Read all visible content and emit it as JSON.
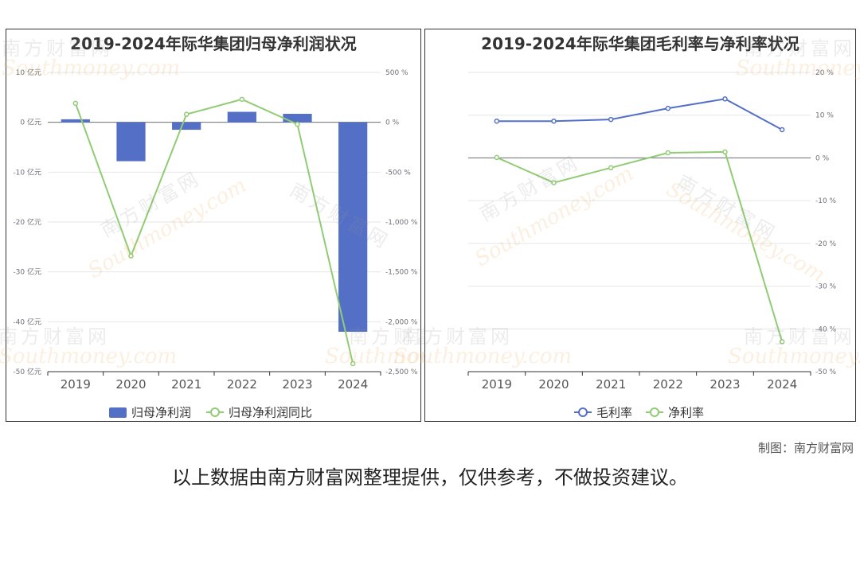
{
  "credit": "制图：南方财富网",
  "disclaimer": "以上数据由南方财富网整理提供，仅供参考，不做投资建议。",
  "watermark": {
    "cn": "南方财富网",
    "en": "Southmoney.com"
  },
  "colors": {
    "blue": "#5470c6",
    "green": "#91cc75"
  },
  "chart_data": [
    {
      "type": "bar",
      "title": "2019-2024年际华集团归母净利润状况",
      "categories": [
        "2019",
        "2020",
        "2021",
        "2022",
        "2023",
        "2024"
      ],
      "y_left": {
        "ticks": [
          10,
          0,
          -10,
          -20,
          -30,
          -40,
          -50
        ],
        "labels": [
          "10 亿元",
          "0 亿元",
          "-10 亿元",
          "-20 亿元",
          "-30 亿元",
          "-40 亿元",
          "-50 亿元"
        ],
        "range": [
          -50,
          10
        ]
      },
      "y_right": {
        "ticks": [
          500,
          0,
          -500,
          -1000,
          -1500,
          -2000,
          -2500
        ],
        "labels": [
          "500 %",
          "0 %",
          "-500 %",
          "-1,000 %",
          "-1,500 %",
          "-2,000 %",
          "-2,500 %"
        ],
        "range": [
          -2500,
          500
        ]
      },
      "series": [
        {
          "name": "归母净利润",
          "type": "bar",
          "axis": "left",
          "color": "#5470c6",
          "values": [
            0.6,
            -7.8,
            -1.5,
            2.1,
            1.7,
            -42.0
          ]
        },
        {
          "name": "归母净利润同比",
          "type": "line",
          "axis": "right",
          "color": "#91cc75",
          "values": [
            190,
            -1340,
            80,
            230,
            -20,
            -2420
          ]
        }
      ],
      "legend": "bottom",
      "grid": true
    },
    {
      "type": "line",
      "title": "2019-2024年际华集团毛利率与净利率状况",
      "categories": [
        "2019",
        "2020",
        "2021",
        "2022",
        "2023",
        "2024"
      ],
      "y_right": {
        "ticks": [
          20,
          10,
          0,
          -10,
          -20,
          -30,
          -40,
          -50
        ],
        "labels": [
          "20 %",
          "10 %",
          "0 %",
          "-10 %",
          "-20 %",
          "-30 %",
          "-40 %",
          "-50 %"
        ],
        "range": [
          -50,
          20
        ]
      },
      "series": [
        {
          "name": "毛利率",
          "type": "line",
          "axis": "right",
          "color": "#5470c6",
          "values": [
            8.6,
            8.6,
            9.0,
            11.6,
            13.8,
            6.6
          ]
        },
        {
          "name": "净利率",
          "type": "line",
          "axis": "right",
          "color": "#91cc75",
          "values": [
            0.1,
            -5.8,
            -2.3,
            1.2,
            1.4,
            -43.0
          ]
        }
      ],
      "legend": "bottom",
      "grid": true
    }
  ]
}
